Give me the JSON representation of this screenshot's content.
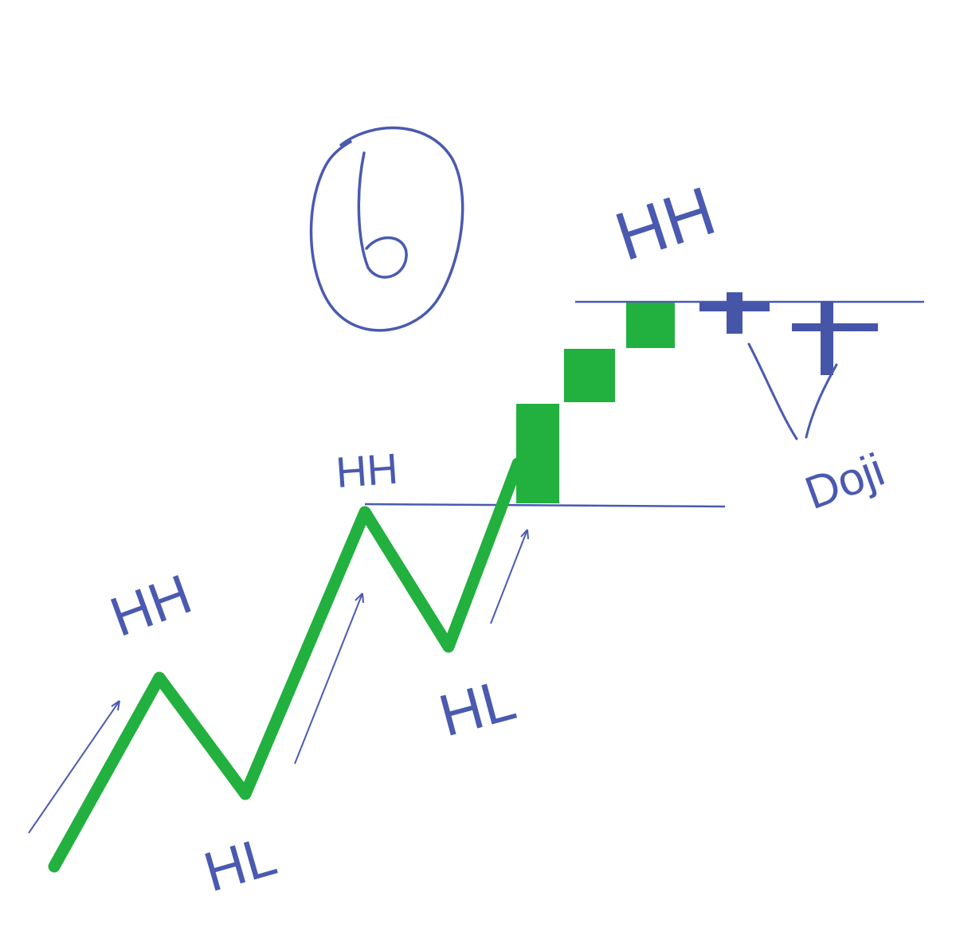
{
  "colors": {
    "background": "#ffffff",
    "ink": "#4a5ab0",
    "trend": "#22b03f",
    "doji": "#4555a8"
  },
  "step_number": "6",
  "labels": {
    "hh_low": "HH",
    "hl_low": "HL",
    "hh_mid": "HH",
    "hl_mid": "HL",
    "hh_top": "HH",
    "doji": "Doji"
  }
}
